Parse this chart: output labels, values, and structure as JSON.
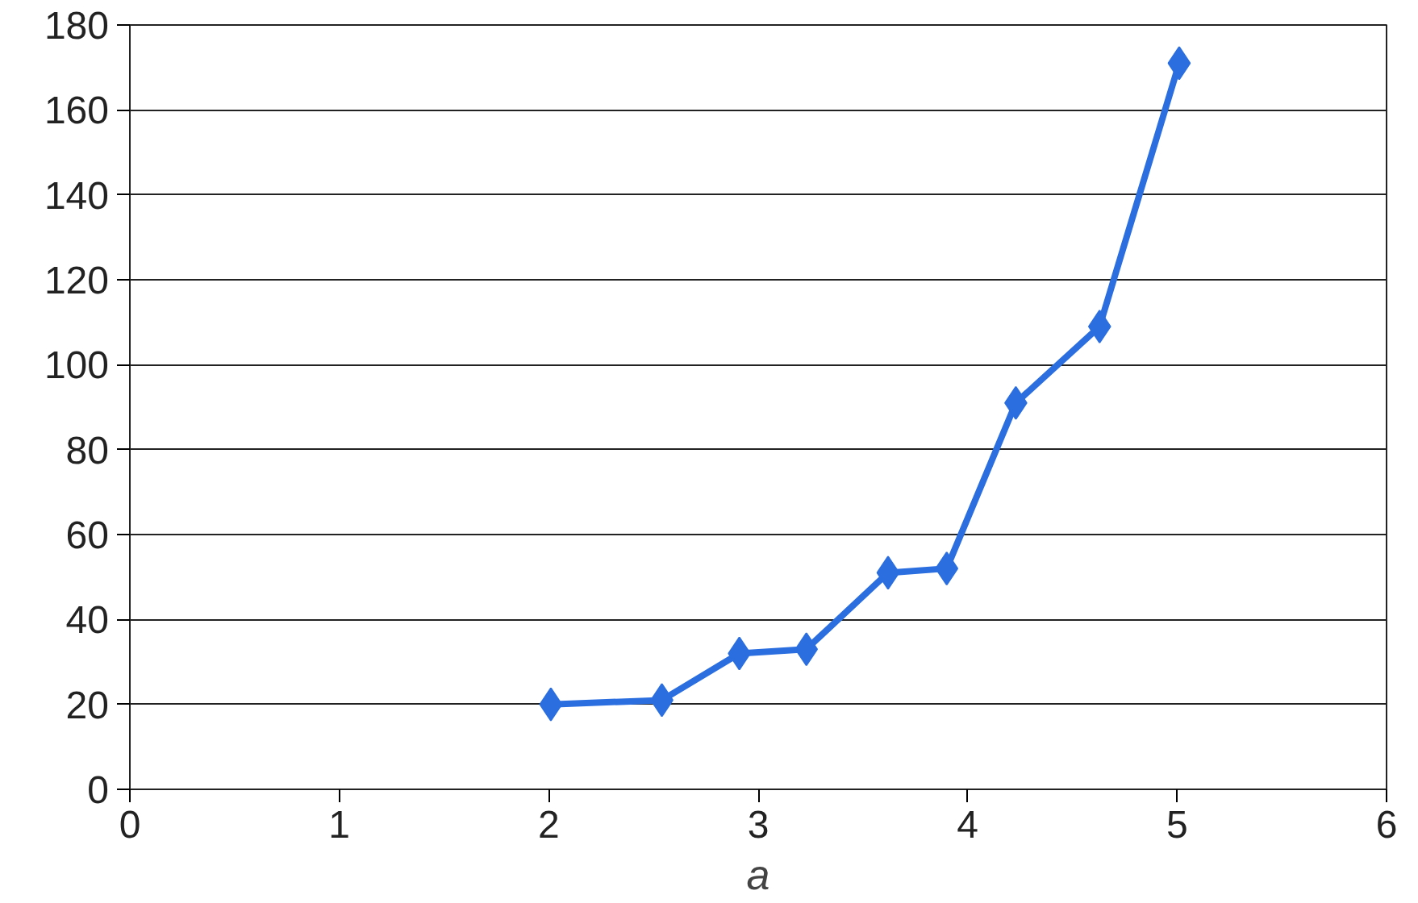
{
  "chart_data": {
    "type": "line",
    "xlabel": "a",
    "x": [
      2.01,
      2.54,
      2.91,
      3.23,
      3.62,
      3.9,
      4.23,
      4.63,
      5.01
    ],
    "series": [
      {
        "color": "#2a6ee0",
        "values": [
          20,
          21,
          32,
          33,
          51,
          52,
          91,
          109,
          171
        ]
      }
    ],
    "xlim": [
      0,
      6
    ],
    "xticks": [
      0,
      1,
      2,
      3,
      4,
      5,
      6
    ],
    "ylim": [
      0,
      180
    ],
    "yticks": [
      0,
      20,
      40,
      60,
      80,
      100,
      120,
      140,
      160,
      180
    ],
    "grid": "y",
    "marker": "diamond",
    "line_style": "solid"
  }
}
